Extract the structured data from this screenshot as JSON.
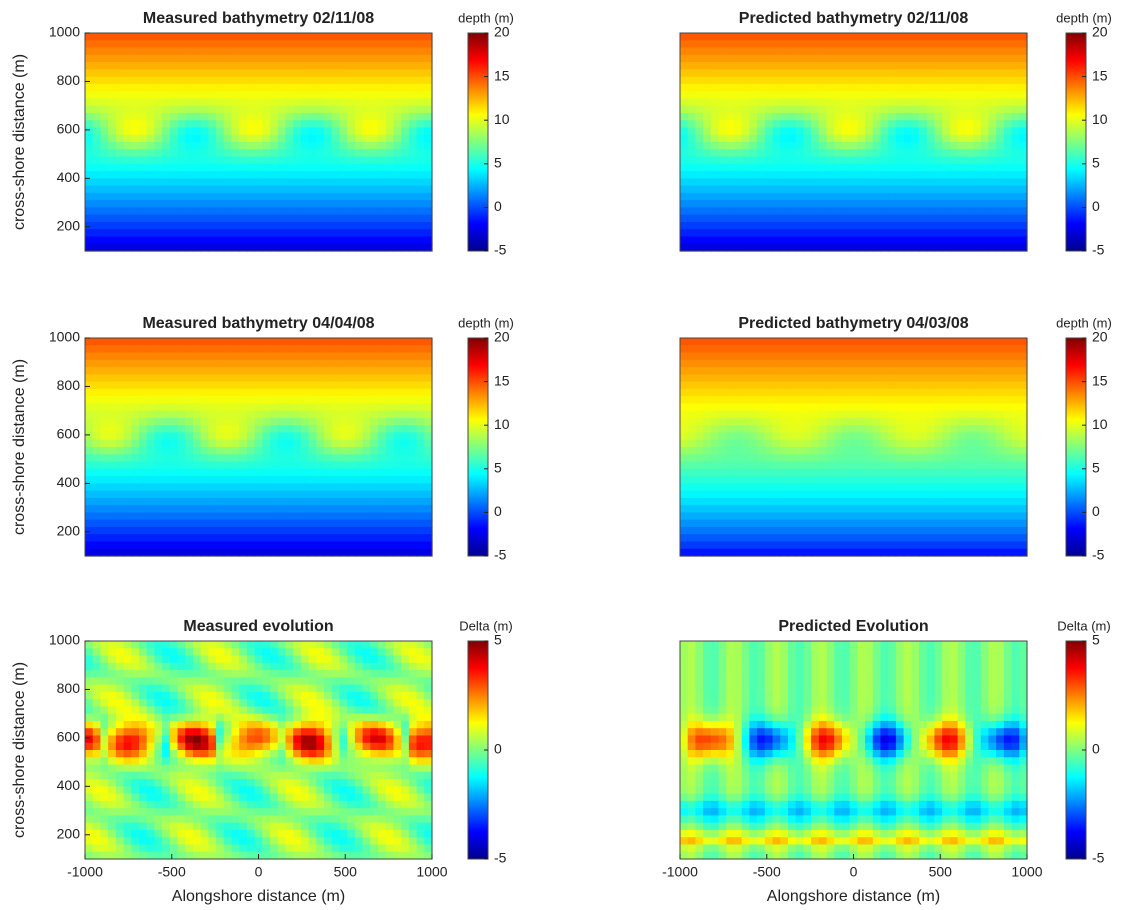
{
  "chart_data": [
    {
      "type": "contour",
      "title": "Measured bathymetry 02/11/08",
      "ylabel": "cross-shore distance (m)",
      "xlim": [
        -1000,
        1000
      ],
      "ylim": [
        100,
        1000
      ],
      "yticks": [
        200,
        400,
        600,
        800,
        1000
      ],
      "colorbar": {
        "label": "depth (m)",
        "lim": [
          -5,
          20
        ],
        "ticks": [
          -5,
          0,
          5,
          10,
          15,
          20
        ]
      }
    },
    {
      "type": "contour",
      "title": "Predicted bathymetry 02/11/08",
      "xlim": [
        -1000,
        1000
      ],
      "ylim": [
        100,
        1000
      ],
      "colorbar": {
        "label": "depth (m)",
        "lim": [
          -5,
          20
        ],
        "ticks": [
          -5,
          0,
          5,
          10,
          15,
          20
        ]
      }
    },
    {
      "type": "contour",
      "title": "Measured bathymetry 04/04/08",
      "ylabel": "cross-shore distance (m)",
      "xlim": [
        -1000,
        1000
      ],
      "ylim": [
        100,
        1000
      ],
      "yticks": [
        200,
        400,
        600,
        800,
        1000
      ],
      "colorbar": {
        "label": "depth (m)",
        "lim": [
          -5,
          20
        ],
        "ticks": [
          -5,
          0,
          5,
          10,
          15,
          20
        ]
      }
    },
    {
      "type": "contour",
      "title": "Predicted bathymetry 04/03/08",
      "xlim": [
        -1000,
        1000
      ],
      "ylim": [
        100,
        1000
      ],
      "colorbar": {
        "label": "depth (m)",
        "lim": [
          -5,
          20
        ],
        "ticks": [
          -5,
          0,
          5,
          10,
          15,
          20
        ]
      }
    },
    {
      "type": "contour",
      "title": "Measured evolution",
      "ylabel": "cross-shore distance (m)",
      "xlabel": "Alongshore distance (m)",
      "xlim": [
        -1000,
        1000
      ],
      "ylim": [
        100,
        1000
      ],
      "xticks": [
        -1000,
        -500,
        0,
        500,
        1000
      ],
      "yticks": [
        200,
        400,
        600,
        800,
        1000
      ],
      "colorbar": {
        "label": "Delta (m)",
        "lim": [
          -5,
          5
        ],
        "ticks": [
          -5,
          0,
          5
        ]
      }
    },
    {
      "type": "contour",
      "title": "Predicted Evolution",
      "xlabel": "Alongshore distance (m)",
      "xlim": [
        -1000,
        1000
      ],
      "ylim": [
        100,
        1000
      ],
      "xticks": [
        -1000,
        -500,
        0,
        500,
        1000
      ],
      "colorbar": {
        "label": "Delta (m)",
        "lim": [
          -5,
          5
        ],
        "ticks": [
          -5,
          0,
          5
        ]
      }
    }
  ]
}
